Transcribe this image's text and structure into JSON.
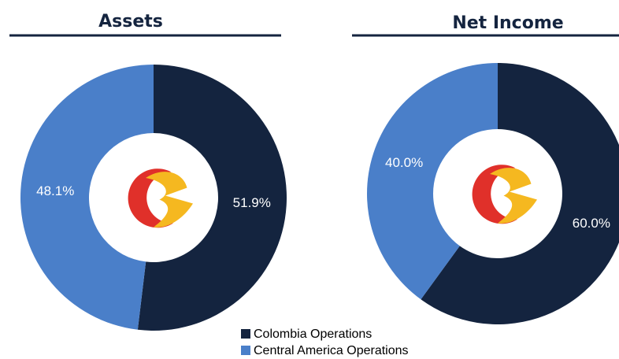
{
  "legend": [
    {
      "name": "Colombia Operations",
      "color": "#14243f"
    },
    {
      "name": "Central America Operations",
      "color": "#4a7fc9"
    }
  ],
  "chart_data": [
    {
      "type": "donut",
      "title": "Assets",
      "values": [
        51.9,
        48.1
      ],
      "value_labels": [
        "51.9%",
        "48.1%"
      ]
    },
    {
      "type": "donut",
      "title": "Net Income",
      "values": [
        60.0,
        40.0
      ],
      "value_labels": [
        "60.0%",
        "40.0%"
      ]
    }
  ]
}
